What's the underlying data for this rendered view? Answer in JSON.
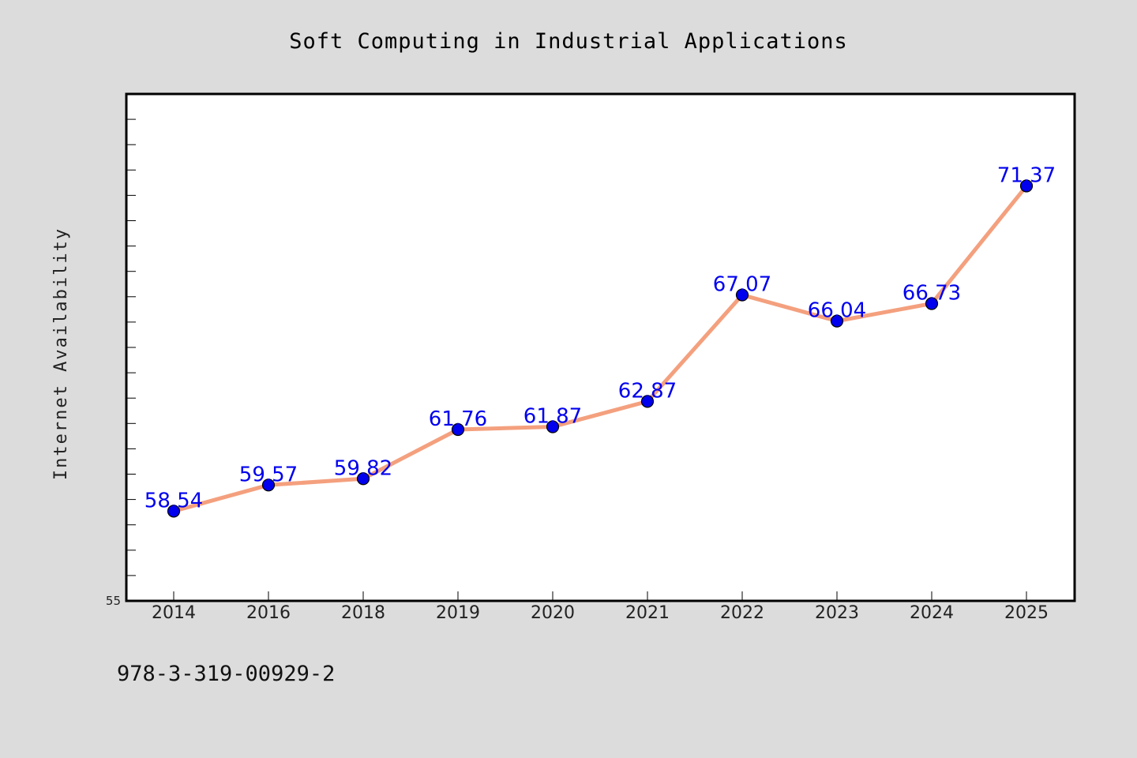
{
  "colors": {
    "background": "#dcdcdc",
    "plot_background": "#ffffff",
    "line": "#f4a07e",
    "marker": "#0000ee",
    "data_label": "#0000ee"
  },
  "footer": {
    "isbn": "978-3-319-00929-2"
  },
  "chart_data": {
    "type": "line",
    "title": "Soft Computing in Industrial Applications",
    "xlabel": "",
    "ylabel": "Internet Availability",
    "categories": [
      "2014",
      "2016",
      "2018",
      "2019",
      "2020",
      "2021",
      "2022",
      "2023",
      "2024",
      "2025"
    ],
    "series": [
      {
        "values": [
          58.54,
          59.57,
          59.82,
          61.76,
          61.87,
          62.87,
          67.07,
          66.04,
          66.73,
          71.37
        ],
        "labels": [
          "58.54",
          "59.57",
          "59.82",
          "61.76",
          "61.87",
          "62.87",
          "67.07",
          "66.04",
          "66.73",
          "71.37"
        ]
      }
    ],
    "ylim": [
      55,
      75
    ],
    "y_tick_labels": [
      "55"
    ],
    "y_minor_tick_step": 1,
    "grid": false,
    "legend": "none"
  }
}
